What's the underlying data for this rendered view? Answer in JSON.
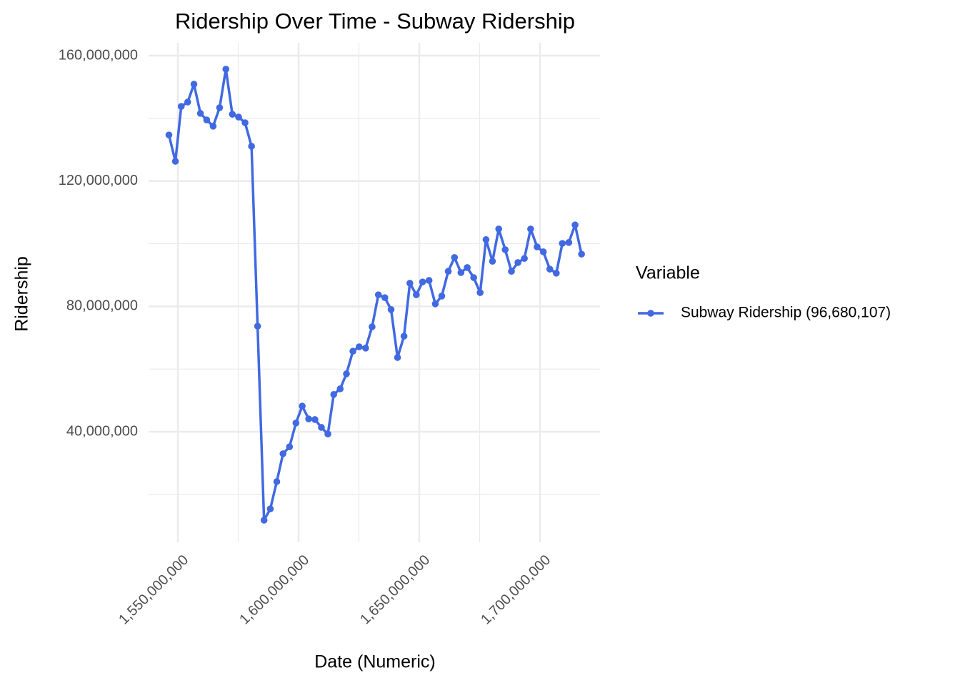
{
  "chart_data": {
    "type": "line",
    "title": "Ridership Over Time - Subway Ridership",
    "x_label": "Date (Numeric)",
    "y_label": "Ridership",
    "legend_title": "Variable",
    "legend_position": "right",
    "grid": true,
    "x": [
      1546300800,
      1548979200,
      1551398400,
      1554076800,
      1556668800,
      1559347200,
      1561939200,
      1564617600,
      1567296000,
      1569888000,
      1572566400,
      1575158400,
      1577836800,
      1580515200,
      1583020800,
      1585699200,
      1588291200,
      1590969600,
      1593561600,
      1596240000,
      1598918400,
      1601510400,
      1604188800,
      1606780800,
      1609459200,
      1612137600,
      1614556800,
      1617235200,
      1619827200,
      1622505600,
      1625097600,
      1627776000,
      1630454400,
      1633046400,
      1635724800,
      1638316800,
      1640995200,
      1643673600,
      1646092800,
      1648771200,
      1651363200,
      1654041600,
      1656633600,
      1659312000,
      1661990400,
      1664582400,
      1667260800,
      1669852800,
      1672531200,
      1675209600,
      1677628800,
      1680307200,
      1682899200,
      1685577600,
      1688169600,
      1690848000,
      1693526400,
      1696118400,
      1698796800,
      1701388800,
      1704067200,
      1706745600,
      1709251200,
      1711929600,
      1714521600,
      1717200000
    ],
    "series": [
      {
        "name": "Subway Ridership (96,680,107)",
        "color": "#4169e1",
        "values": [
          134700000,
          126300000,
          143800000,
          145200000,
          150900000,
          141600000,
          139500000,
          137500000,
          143400000,
          155700000,
          141300000,
          140400000,
          138600000,
          131100000,
          73700000,
          11800000,
          15400000,
          24100000,
          33000000,
          35200000,
          42800000,
          48200000,
          44100000,
          43900000,
          41400000,
          39300000,
          51900000,
          53700000,
          58500000,
          65700000,
          67100000,
          66700000,
          73500000,
          83700000,
          82800000,
          79000000,
          63700000,
          70500000,
          87400000,
          83700000,
          87800000,
          88300000,
          80800000,
          83300000,
          91200000,
          95600000,
          90800000,
          92400000,
          89200000,
          84400000,
          101300000,
          94400000,
          104700000,
          98100000,
          91200000,
          94000000,
          95300000,
          104700000,
          99000000,
          97400000,
          91900000,
          90600000,
          100100000,
          100400000,
          106000000,
          96680107
        ]
      }
    ],
    "xlim": [
      1537870000,
      1724850000
    ],
    "ylim": [
      4740000,
      164100000
    ],
    "xticks": [
      {
        "value": 1550000000,
        "label": "1,550,000,000"
      },
      {
        "value": 1600000000,
        "label": "1,600,000,000"
      },
      {
        "value": 1650000000,
        "label": "1,650,000,000"
      },
      {
        "value": 1700000000,
        "label": "1,700,000,000"
      }
    ],
    "yticks": [
      {
        "value": 40000000,
        "label": "40,000,000"
      },
      {
        "value": 80000000,
        "label": "80,000,000"
      },
      {
        "value": 120000000,
        "label": "120,000,000"
      },
      {
        "value": 160000000,
        "label": "160,000,000"
      }
    ]
  }
}
